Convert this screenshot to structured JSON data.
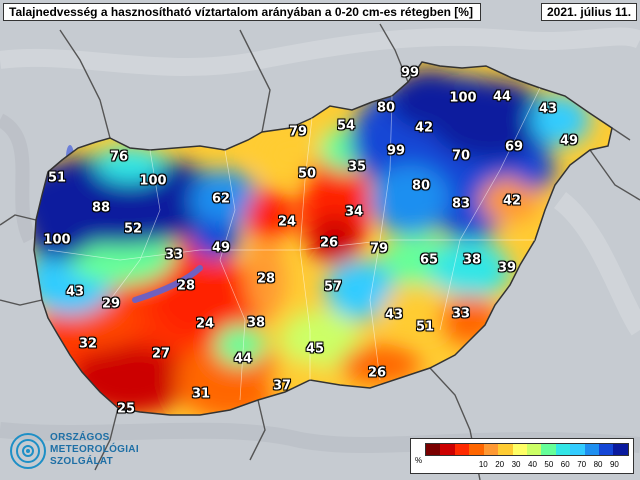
{
  "title": "Talajnedvesség a hasznosítható víztartalom arányában a 0-20 cm-es rétegben [%]",
  "date": "2021. július 11.",
  "logo": {
    "icon": "omsz-swirl-logo",
    "lines": [
      "ORSZÁGOS",
      "METEOROLÓGIAI",
      "SZOLGÁLAT"
    ]
  },
  "legend": {
    "unit": "%",
    "colors": [
      "#7a0000",
      "#cc0000",
      "#ff2a00",
      "#ff6600",
      "#ff9933",
      "#ffcc33",
      "#ffff66",
      "#ccff66",
      "#66ff99",
      "#33e6e6",
      "#33ccff",
      "#1f8ff0",
      "#1446d6",
      "#0a1a9e"
    ],
    "ticks": [
      "10",
      "20",
      "30",
      "40",
      "50",
      "60",
      "70",
      "80",
      "90"
    ]
  },
  "map_values": [
    {
      "value": "99"
    },
    {
      "value": "100"
    },
    {
      "value": "44"
    },
    {
      "value": "43"
    },
    {
      "value": "80"
    },
    {
      "value": "42"
    },
    {
      "value": "49"
    },
    {
      "value": "79"
    },
    {
      "value": "54"
    },
    {
      "value": "99"
    },
    {
      "value": "70"
    },
    {
      "value": "69"
    },
    {
      "value": "76"
    },
    {
      "value": "35"
    },
    {
      "value": "50"
    },
    {
      "value": "51"
    },
    {
      "value": "100"
    },
    {
      "value": "80"
    },
    {
      "value": "83"
    },
    {
      "value": "42"
    },
    {
      "value": "62"
    },
    {
      "value": "34"
    },
    {
      "value": "88"
    },
    {
      "value": "24"
    },
    {
      "value": "52"
    },
    {
      "value": "26"
    },
    {
      "value": "79"
    },
    {
      "value": "100"
    },
    {
      "value": "49"
    },
    {
      "value": "33"
    },
    {
      "value": "65"
    },
    {
      "value": "38"
    },
    {
      "value": "39"
    },
    {
      "value": "28"
    },
    {
      "value": "28"
    },
    {
      "value": "57"
    },
    {
      "value": "43"
    },
    {
      "value": "29"
    },
    {
      "value": "43"
    },
    {
      "value": "33"
    },
    {
      "value": "24"
    },
    {
      "value": "38"
    },
    {
      "value": "51"
    },
    {
      "value": "32"
    },
    {
      "value": "27"
    },
    {
      "value": "44"
    },
    {
      "value": "45"
    },
    {
      "value": "37"
    },
    {
      "value": "26"
    },
    {
      "value": "31"
    },
    {
      "value": "25"
    }
  ]
}
